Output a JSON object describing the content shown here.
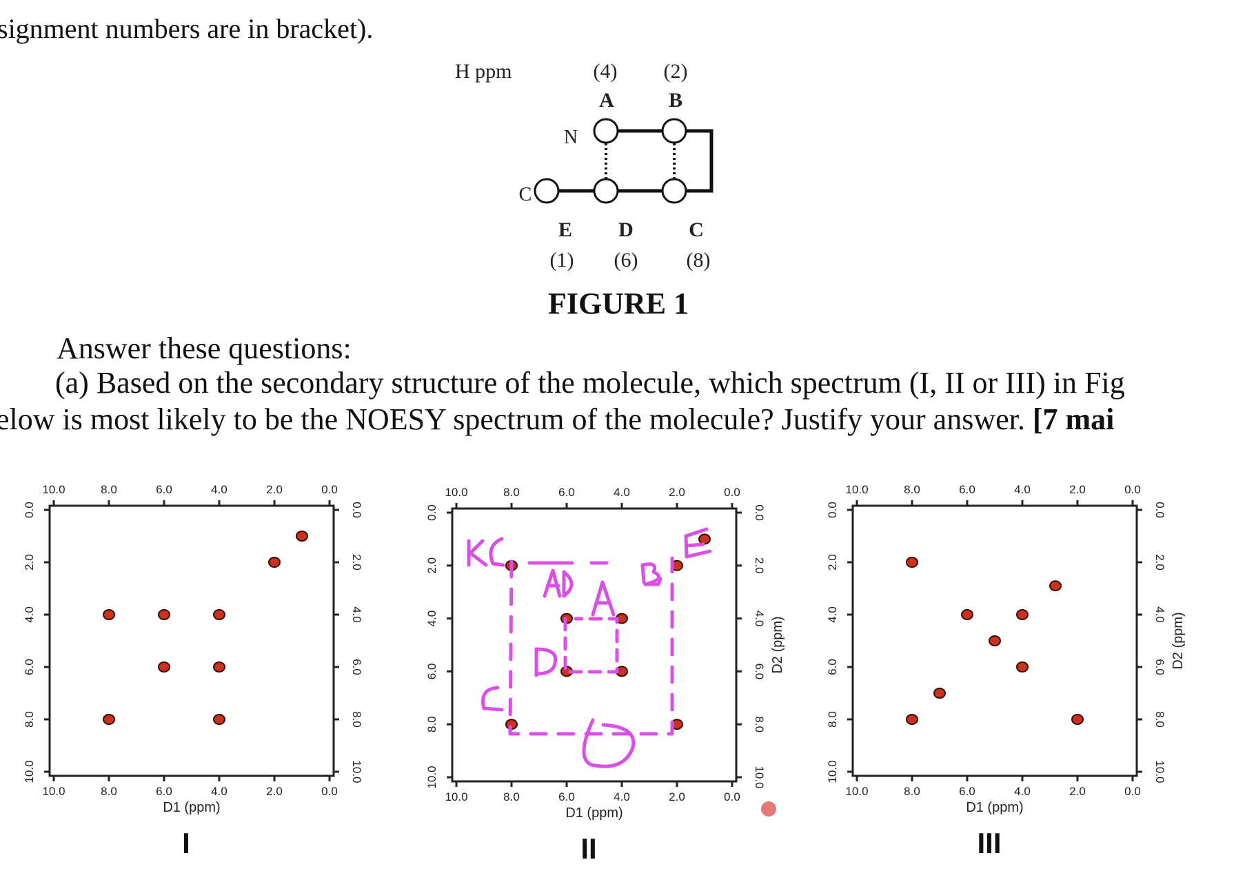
{
  "document": {
    "top_line": "signment numbers are in bracket).",
    "figure1": {
      "h_ppm_label": "H ppm",
      "n_label": "N",
      "c_label": "C",
      "caption": "FIGURE 1",
      "nodes": [
        {
          "id": "A",
          "number": "(4)"
        },
        {
          "id": "B",
          "number": "(2)"
        },
        {
          "id": "C",
          "number": "(8)"
        },
        {
          "id": "D",
          "number": "(6)"
        },
        {
          "id": "E",
          "number": "(1)"
        }
      ]
    },
    "questions": {
      "heading": "Answer these questions:",
      "a_line1": "(a) Based on the secondary structure of the molecule, which spectrum (I, II or III) in Fig",
      "a_line2_start": "elow is most likely to be the NOESY spectrum of the molecule? Justify your answer.",
      "a_line2_marks": "[7 mai"
    },
    "annotations": {
      "panel_II": [
        "KC",
        "AD",
        "A",
        "B",
        "E",
        "D",
        "C"
      ]
    }
  },
  "chart_data": [
    {
      "type": "scatter",
      "panel_label": "I",
      "xlabel": "D1 (ppm)",
      "ylabel": "",
      "xlim": [
        10.0,
        0.0
      ],
      "ylim": [
        0.0,
        10.0
      ],
      "ticks": [
        "10.0",
        "8.0",
        "6.0",
        "4.0",
        "2.0",
        "0.0"
      ],
      "points": [
        [
          1.0,
          1.0
        ],
        [
          2.0,
          2.0
        ],
        [
          8.0,
          4.0
        ],
        [
          6.0,
          4.0
        ],
        [
          4.0,
          4.0
        ],
        [
          6.0,
          6.0
        ],
        [
          4.0,
          6.0
        ],
        [
          8.0,
          8.0
        ],
        [
          4.0,
          8.0
        ]
      ]
    },
    {
      "type": "scatter",
      "panel_label": "II",
      "xlabel": "D1 (ppm)",
      "ylabel": "D2 (ppm)",
      "xlim": [
        10.0,
        0.0
      ],
      "ylim": [
        0.0,
        10.0
      ],
      "ticks": [
        "10.0",
        "8.0",
        "6.0",
        "4.0",
        "2.0",
        "0.0"
      ],
      "points": [
        [
          1.0,
          1.0
        ],
        [
          8.0,
          2.0
        ],
        [
          2.0,
          2.0
        ],
        [
          6.0,
          4.0
        ],
        [
          4.0,
          4.0
        ],
        [
          6.0,
          6.0
        ],
        [
          4.0,
          6.0
        ],
        [
          8.0,
          8.0
        ],
        [
          2.0,
          8.0
        ]
      ]
    },
    {
      "type": "scatter",
      "panel_label": "III",
      "xlabel": "D1 (ppm)",
      "ylabel": "D2 (ppm)",
      "xlim": [
        10.0,
        0.0
      ],
      "ylim": [
        0.0,
        10.0
      ],
      "ticks": [
        "10.0",
        "8.0",
        "6.0",
        "4.0",
        "2.0",
        "0.0"
      ],
      "points": [
        [
          8.0,
          2.0
        ],
        [
          2.8,
          2.9
        ],
        [
          6.0,
          4.0
        ],
        [
          4.0,
          4.0
        ],
        [
          5.0,
          5.0
        ],
        [
          4.0,
          6.0
        ],
        [
          7.0,
          7.0
        ],
        [
          8.0,
          8.0
        ],
        [
          2.0,
          8.0
        ]
      ]
    }
  ],
  "colors": {
    "point_fill": "#c8321e",
    "point_stroke": "#3a0a05",
    "annotation": "#d94fe8",
    "cursor_dot": "#e06060"
  }
}
